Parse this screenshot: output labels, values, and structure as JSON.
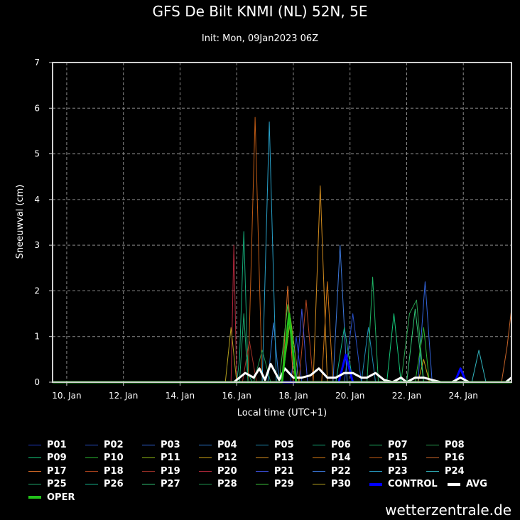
{
  "chart_data": {
    "type": "line",
    "title": "GFS De Bilt KNMI (NL) 52N, 5E",
    "subtitle": "Init: Mon, 09Jan2023 06Z",
    "xlabel": "Local time (UTC+1)",
    "ylabel": "Sneeuwval (cm)",
    "xlim": [
      9.5,
      25.7
    ],
    "ylim": [
      0,
      7
    ],
    "yticks": [
      0,
      1,
      2,
      3,
      4,
      5,
      6,
      7
    ],
    "xticks": [
      {
        "value": 10,
        "label": "10. Jan"
      },
      {
        "value": 12,
        "label": "12. Jan"
      },
      {
        "value": 14,
        "label": "14. Jan"
      },
      {
        "value": 16,
        "label": "16. Jan"
      },
      {
        "value": 18,
        "label": "18. Jan"
      },
      {
        "value": 20,
        "label": "20. Jan"
      },
      {
        "value": 22,
        "label": "22. Jan"
      },
      {
        "value": 24,
        "label": "24. Jan"
      }
    ],
    "grid": true,
    "legend_position": "bottom",
    "x_units": "Jan 2023 (day of month)",
    "series": [
      {
        "name": "P01",
        "color": "#1e3cc8",
        "width": 1,
        "points": [
          [
            15.5,
            0
          ],
          [
            17.9,
            0
          ],
          [
            18.1,
            1.0
          ],
          [
            18.3,
            0
          ]
        ]
      },
      {
        "name": "P02",
        "color": "#2850c8",
        "width": 1,
        "points": [
          [
            15.5,
            0
          ],
          [
            19.8,
            0
          ],
          [
            20.1,
            1.5
          ],
          [
            20.4,
            0
          ]
        ]
      },
      {
        "name": "P03",
        "color": "#3264dc",
        "width": 1,
        "points": [
          [
            15.5,
            0
          ],
          [
            22.4,
            0
          ],
          [
            22.65,
            2.2
          ],
          [
            22.9,
            0
          ]
        ]
      },
      {
        "name": "P04",
        "color": "#2d7ad2",
        "width": 1,
        "points": [
          [
            15.5,
            0
          ],
          [
            17.1,
            0
          ],
          [
            17.3,
            1.3
          ],
          [
            17.5,
            0
          ]
        ]
      },
      {
        "name": "P05",
        "color": "#1e8cb4",
        "width": 1,
        "points": [
          [
            15.5,
            0
          ],
          [
            20.4,
            0
          ],
          [
            20.65,
            1.2
          ],
          [
            20.9,
            0
          ]
        ]
      },
      {
        "name": "P06",
        "color": "#14aa78",
        "width": 1,
        "points": [
          [
            15.5,
            0
          ],
          [
            16.0,
            0
          ],
          [
            16.1,
            0.5
          ],
          [
            16.25,
            3.3
          ],
          [
            16.4,
            0.2
          ],
          [
            16.55,
            0
          ]
        ]
      },
      {
        "name": "P07",
        "color": "#1eb464",
        "width": 1,
        "points": [
          [
            15.5,
            0
          ],
          [
            20.6,
            0
          ],
          [
            20.8,
            2.3
          ],
          [
            21.0,
            0
          ]
        ]
      },
      {
        "name": "P08",
        "color": "#28a050",
        "width": 1,
        "points": [
          [
            15.5,
            0
          ],
          [
            21.8,
            0
          ],
          [
            22.1,
            1.5
          ],
          [
            22.35,
            1.8
          ],
          [
            22.6,
            0
          ]
        ]
      },
      {
        "name": "P09",
        "color": "#14c87a",
        "width": 1,
        "points": [
          [
            15.5,
            0
          ],
          [
            21.3,
            0
          ],
          [
            21.55,
            1.5
          ],
          [
            21.8,
            0
          ]
        ]
      },
      {
        "name": "P10",
        "color": "#28b432",
        "width": 1,
        "points": [
          [
            15.5,
            0
          ],
          [
            22.3,
            0
          ],
          [
            22.6,
            1.2
          ],
          [
            22.8,
            0
          ]
        ]
      },
      {
        "name": "P11",
        "color": "#8cb414",
        "width": 1,
        "points": [
          [
            15.5,
            0
          ],
          [
            17.6,
            0
          ],
          [
            17.9,
            1.4
          ],
          [
            18.2,
            0
          ]
        ]
      },
      {
        "name": "P12",
        "color": "#c8a014",
        "width": 1,
        "points": [
          [
            15.5,
            0
          ],
          [
            22.4,
            0
          ],
          [
            22.6,
            0.5
          ],
          [
            22.8,
            0
          ]
        ]
      },
      {
        "name": "P13",
        "color": "#d28c1e",
        "width": 1,
        "points": [
          [
            15.5,
            0
          ],
          [
            18.7,
            0
          ],
          [
            18.95,
            4.3
          ],
          [
            19.2,
            0
          ]
        ]
      },
      {
        "name": "P14",
        "color": "#d27814",
        "width": 1,
        "points": [
          [
            15.5,
            0
          ],
          [
            19.0,
            0
          ],
          [
            19.2,
            2.2
          ],
          [
            19.4,
            0
          ]
        ]
      },
      {
        "name": "P15",
        "color": "#be5a14",
        "width": 1,
        "points": [
          [
            15.5,
            0
          ],
          [
            16.4,
            0
          ],
          [
            16.65,
            5.8
          ],
          [
            16.9,
            0
          ]
        ]
      },
      {
        "name": "P16",
        "color": "#c86428",
        "width": 1,
        "points": [
          [
            15.5,
            0
          ],
          [
            25.35,
            0
          ],
          [
            25.55,
            0.8
          ],
          [
            25.7,
            1.6
          ]
        ]
      },
      {
        "name": "P17",
        "color": "#dc6e28",
        "width": 1,
        "points": [
          [
            15.5,
            0
          ],
          [
            17.6,
            0
          ],
          [
            17.8,
            2.1
          ],
          [
            18.0,
            0
          ]
        ]
      },
      {
        "name": "P18",
        "color": "#b4461e",
        "width": 1,
        "points": [
          [
            15.5,
            0
          ],
          [
            18.2,
            0
          ],
          [
            18.45,
            1.8
          ],
          [
            18.7,
            0
          ]
        ]
      },
      {
        "name": "P19",
        "color": "#a03228",
        "width": 1,
        "points": [
          [
            15.5,
            0
          ],
          [
            16.2,
            0
          ],
          [
            16.45,
            0.9
          ],
          [
            16.7,
            0
          ]
        ]
      },
      {
        "name": "P20",
        "color": "#b4283c",
        "width": 1,
        "points": [
          [
            15.5,
            0
          ],
          [
            15.8,
            0
          ],
          [
            15.9,
            3.0
          ],
          [
            16.0,
            0
          ]
        ]
      },
      {
        "name": "P21",
        "color": "#3c50dc",
        "width": 1,
        "points": [
          [
            15.5,
            0
          ],
          [
            18.1,
            0
          ],
          [
            18.3,
            1.6
          ],
          [
            18.5,
            0
          ]
        ]
      },
      {
        "name": "P22",
        "color": "#3c78dc",
        "width": 1,
        "points": [
          [
            15.5,
            0
          ],
          [
            19.4,
            0
          ],
          [
            19.65,
            3.0
          ],
          [
            19.9,
            0
          ]
        ]
      },
      {
        "name": "P23",
        "color": "#28a0c8",
        "width": 1,
        "points": [
          [
            15.5,
            0
          ],
          [
            16.9,
            0
          ],
          [
            17.15,
            5.7
          ],
          [
            17.4,
            0
          ]
        ]
      },
      {
        "name": "P24",
        "color": "#32b4be",
        "width": 1,
        "points": [
          [
            15.5,
            0
          ],
          [
            24.3,
            0
          ],
          [
            24.55,
            0.7
          ],
          [
            24.8,
            0
          ]
        ]
      },
      {
        "name": "P25",
        "color": "#1eaa6e",
        "width": 1,
        "points": [
          [
            15.5,
            0
          ],
          [
            16.1,
            0
          ],
          [
            16.25,
            1.5
          ],
          [
            16.4,
            0
          ]
        ]
      },
      {
        "name": "P26",
        "color": "#14b48c",
        "width": 1,
        "points": [
          [
            15.5,
            0
          ],
          [
            19.5,
            0
          ],
          [
            19.8,
            1.2
          ],
          [
            20.1,
            0
          ]
        ]
      },
      {
        "name": "P27",
        "color": "#32c878",
        "width": 1,
        "points": [
          [
            15.5,
            0
          ],
          [
            22.0,
            0
          ],
          [
            22.3,
            1.6
          ],
          [
            22.6,
            0
          ]
        ]
      },
      {
        "name": "P28",
        "color": "#1e9650",
        "width": 1,
        "points": [
          [
            15.5,
            0
          ],
          [
            16.6,
            0
          ],
          [
            16.9,
            0.7
          ],
          [
            17.2,
            0
          ]
        ]
      },
      {
        "name": "P29",
        "color": "#3cc83c",
        "width": 1,
        "points": [
          [
            15.5,
            0
          ],
          [
            17.5,
            0
          ],
          [
            17.8,
            1.7
          ],
          [
            18.1,
            0
          ]
        ]
      },
      {
        "name": "P30",
        "color": "#b4a01e",
        "width": 1,
        "points": [
          [
            15.5,
            0
          ],
          [
            15.6,
            0
          ],
          [
            15.8,
            1.2
          ],
          [
            16.0,
            0
          ]
        ]
      },
      {
        "name": "CONTROL",
        "color": "#0000ff",
        "width": 3,
        "points": [
          [
            15.5,
            0
          ],
          [
            19.6,
            0
          ],
          [
            19.85,
            0.6
          ],
          [
            20.1,
            0
          ],
          [
            23.7,
            0
          ],
          [
            23.9,
            0.3
          ],
          [
            24.1,
            0
          ]
        ]
      },
      {
        "name": "AVG",
        "color": "#ffffff",
        "width": 3,
        "points": [
          [
            15.5,
            0
          ],
          [
            15.9,
            0
          ],
          [
            16.3,
            0.2
          ],
          [
            16.6,
            0.1
          ],
          [
            16.8,
            0.3
          ],
          [
            17.0,
            0.05
          ],
          [
            17.2,
            0.4
          ],
          [
            17.5,
            0.05
          ],
          [
            17.7,
            0.3
          ],
          [
            18.0,
            0.1
          ],
          [
            18.3,
            0.1
          ],
          [
            18.6,
            0.15
          ],
          [
            18.9,
            0.3
          ],
          [
            19.2,
            0.1
          ],
          [
            19.5,
            0.1
          ],
          [
            19.8,
            0.2
          ],
          [
            20.1,
            0.2
          ],
          [
            20.4,
            0.1
          ],
          [
            20.6,
            0.1
          ],
          [
            20.9,
            0.2
          ],
          [
            21.2,
            0.05
          ],
          [
            21.5,
            0
          ],
          [
            21.8,
            0.1
          ],
          [
            22.0,
            0
          ],
          [
            22.3,
            0.1
          ],
          [
            22.6,
            0.1
          ],
          [
            22.9,
            0.05
          ],
          [
            23.2,
            0
          ],
          [
            23.6,
            0
          ],
          [
            23.9,
            0.1
          ],
          [
            24.2,
            0
          ],
          [
            25.5,
            0
          ],
          [
            25.7,
            0.1
          ]
        ]
      },
      {
        "name": "OPER",
        "color": "#22c21a",
        "width": 3,
        "points": [
          [
            15.5,
            0
          ],
          [
            17.6,
            0
          ],
          [
            17.85,
            1.5
          ],
          [
            18.1,
            0
          ]
        ]
      }
    ]
  },
  "credit": "wetterzentrale.de"
}
